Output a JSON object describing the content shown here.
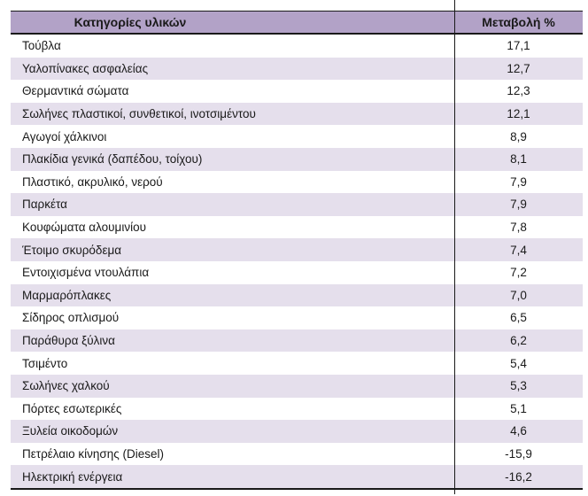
{
  "colors": {
    "header_bg": "#b2a2c7",
    "stripe_bg": "#e5dfec",
    "border": "#1a1a1a",
    "text": "#1a1a1a"
  },
  "table": {
    "columns": [
      {
        "label": "Κατηγορίες υλικών"
      },
      {
        "label": "Μεταβολή %"
      }
    ],
    "rows": [
      {
        "category": "Τούβλα",
        "change": "17,1"
      },
      {
        "category": "Υαλοπίνακες ασφαλείας",
        "change": "12,7"
      },
      {
        "category": "Θερμαντικά σώματα",
        "change": "12,3"
      },
      {
        "category": "Σωλήνες πλαστικοί, συνθετικοί, ινοτσιμέντου",
        "change": "12,1"
      },
      {
        "category": "Αγωγοί χάλκινοι",
        "change": "8,9"
      },
      {
        "category": "Πλακίδια γενικά (δαπέδου, τοίχου)",
        "change": "8,1"
      },
      {
        "category": "Πλαστικό, ακρυλικό, νερού",
        "change": "7,9"
      },
      {
        "category": "Παρκέτα",
        "change": "7,9"
      },
      {
        "category": "Κουφώματα αλουμινίου",
        "change": "7,8"
      },
      {
        "category": "Έτοιμο σκυρόδεμα",
        "change": "7,4"
      },
      {
        "category": "Εντοιχισμένα ντουλάπια",
        "change": "7,2"
      },
      {
        "category": "Μαρμαρόπλακες",
        "change": "7,0"
      },
      {
        "category": "Σίδηρος οπλισμού",
        "change": "6,5"
      },
      {
        "category": "Παράθυρα ξύλινα",
        "change": "6,2"
      },
      {
        "category": "Τσιμέντο",
        "change": "5,4"
      },
      {
        "category": "Σωλήνες χαλκού",
        "change": "5,3"
      },
      {
        "category": "Πόρτες εσωτερικές",
        "change": "5,1"
      },
      {
        "category": "Ξυλεία οικοδομών",
        "change": "4,6"
      },
      {
        "category": "Πετρέλαιο κίνησης (Diesel)",
        "change": "-15,9"
      },
      {
        "category": "Ηλεκτρική ενέργεια",
        "change": "-16,2"
      }
    ]
  },
  "chart_data": {
    "type": "table",
    "title": "",
    "columns": [
      "Κατηγορίες υλικών",
      "Μεταβολή %"
    ],
    "categories": [
      "Τούβλα",
      "Υαλοπίνακες ασφαλείας",
      "Θερμαντικά σώματα",
      "Σωλήνες πλαστικοί, συνθετικοί, ινοτσιμέντου",
      "Αγωγοί χάλκινοι",
      "Πλακίδια γενικά (δαπέδου, τοίχου)",
      "Πλαστικό, ακρυλικό, νερού",
      "Παρκέτα",
      "Κουφώματα αλουμινίου",
      "Έτοιμο σκυρόδεμα",
      "Εντοιχισμένα ντουλάπια",
      "Μαρμαρόπλακες",
      "Σίδηρος οπλισμού",
      "Παράθυρα ξύλινα",
      "Τσιμέντο",
      "Σωλήνες χαλκού",
      "Πόρτες εσωτερικές",
      "Ξυλεία οικοδομών",
      "Πετρέλαιο κίνησης (Diesel)",
      "Ηλεκτρική ενέργεια"
    ],
    "values": [
      17.1,
      12.7,
      12.3,
      12.1,
      8.9,
      8.1,
      7.9,
      7.9,
      7.8,
      7.4,
      7.2,
      7.0,
      6.5,
      6.2,
      5.4,
      5.3,
      5.1,
      4.6,
      -15.9,
      -16.2
    ]
  }
}
